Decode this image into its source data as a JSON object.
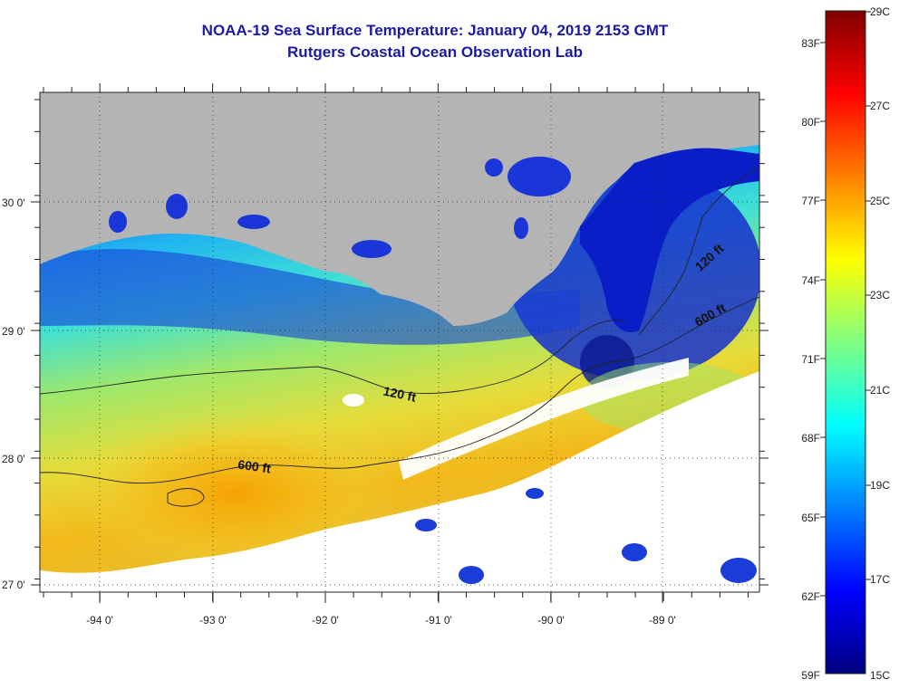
{
  "header": {
    "title_line1": "NOAA-19 Sea Surface Temperature:  January 04, 2019 2153 GMT",
    "title_line2": "Rutgers Coastal Ocean Observation Lab"
  },
  "map": {
    "lon_labels": [
      "-94 0'",
      "-93 0'",
      "-92 0'",
      "-91 0'",
      "-90 0'",
      "-89 0'"
    ],
    "lat_labels": [
      "30 0'",
      "29 0'",
      "28 0'",
      "27 0'"
    ],
    "contour_labels": [
      "120 ft",
      "120 ft",
      "600 ft",
      "600 ft"
    ],
    "colors": {
      "land": "#b4b4b4",
      "no_data": "#ffffff",
      "cold": "#0a1eb4",
      "warm": "#f5b400"
    }
  },
  "colorbar": {
    "fahrenheit_labels": [
      "83F",
      "80F",
      "77F",
      "74F",
      "71F",
      "68F",
      "65F",
      "62F",
      "59F"
    ],
    "celsius_labels": [
      "29C",
      "27C",
      "25C",
      "23C",
      "21C",
      "19C",
      "17C",
      "15C"
    ],
    "colormap": [
      "#000080",
      "#0000ff",
      "#0080ff",
      "#00ffff",
      "#80ff80",
      "#ffff00",
      "#ff8000",
      "#ff0000",
      "#800000"
    ]
  }
}
